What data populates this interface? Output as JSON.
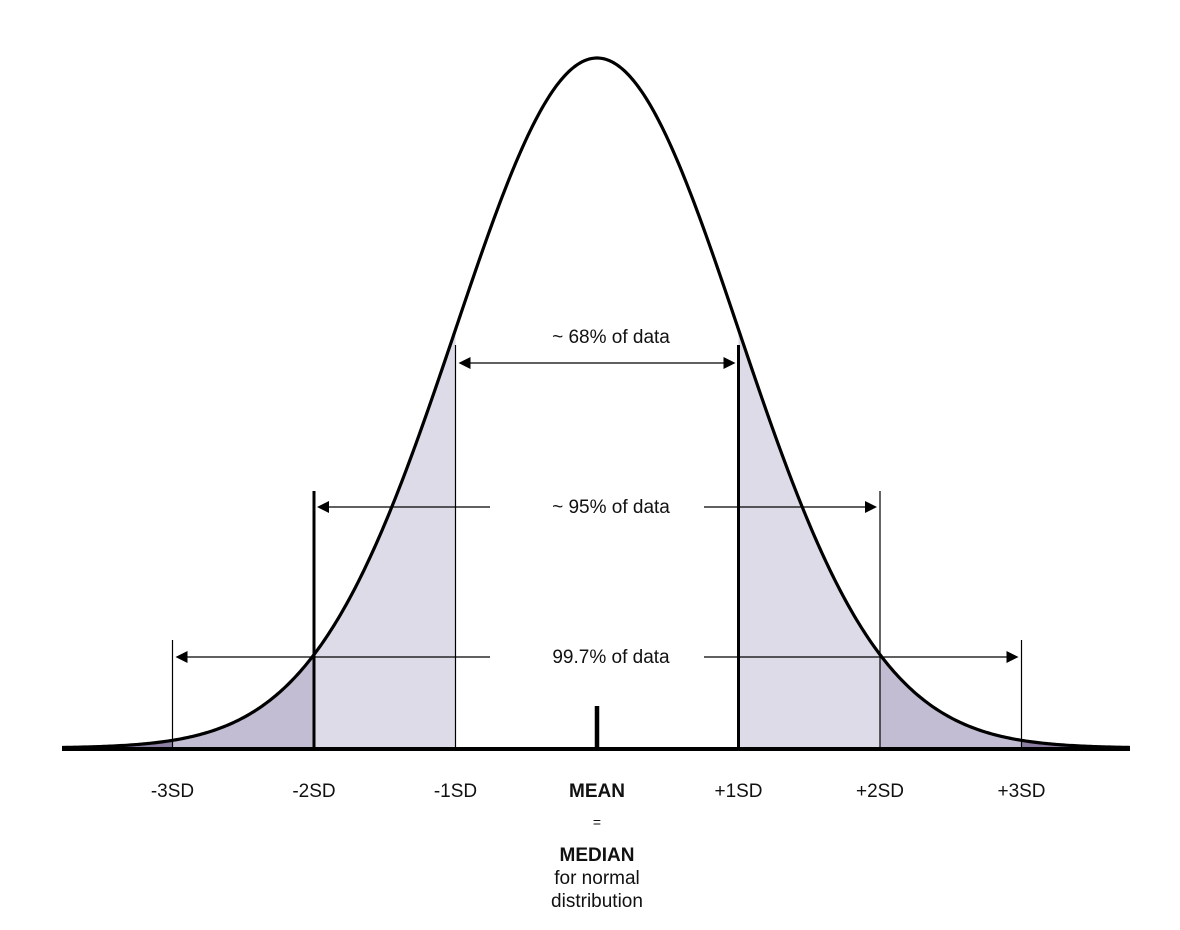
{
  "diagram": {
    "type": "normal-distribution",
    "axis_labels": [
      "-3SD",
      "-2SD",
      "-1SD",
      "MEAN",
      "+1SD",
      "+2SD",
      "+3SD"
    ],
    "sd_values": [
      -3,
      -2,
      -1,
      0,
      1,
      2,
      3
    ],
    "ranges": [
      {
        "label": "~ 68% of data",
        "from_sd": -1,
        "to_sd": 1
      },
      {
        "label": "~ 95% of data",
        "from_sd": -2,
        "to_sd": 2
      },
      {
        "label": "99.7% of data",
        "from_sd": -3,
        "to_sd": 3
      }
    ],
    "mean_note": {
      "equals": "=",
      "median": "MEDIAN",
      "line1": "for normal",
      "line2": "distribution"
    },
    "colors": {
      "inner_fill": "#dddbe8",
      "outer_fill": "#c2bdd3",
      "tail_fill": "#8c7fa3",
      "stroke": "#000000"
    }
  }
}
